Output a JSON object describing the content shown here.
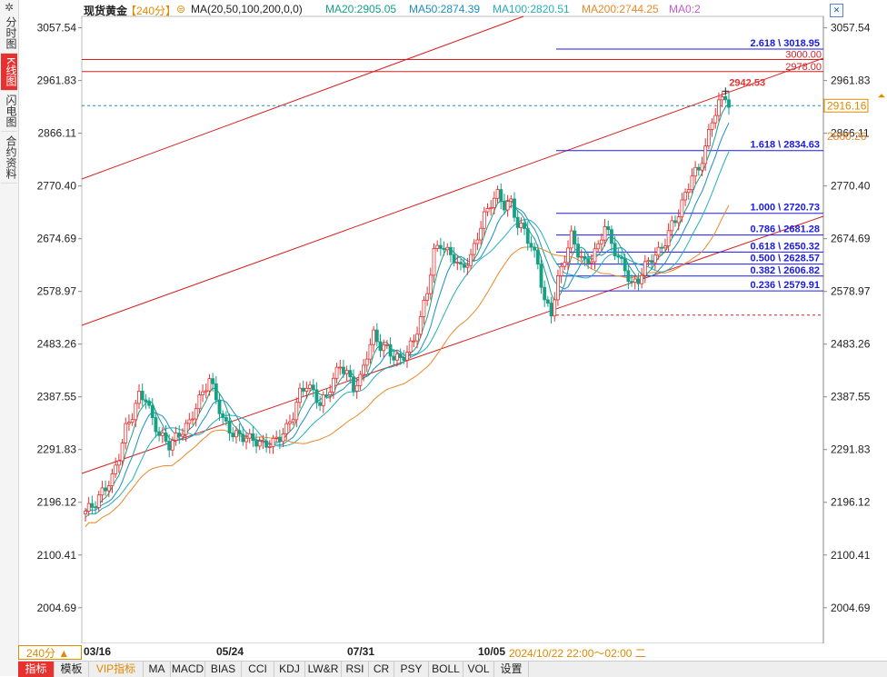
{
  "app": {
    "sidebar_tabs": [
      "分时图",
      "K线图",
      "闪电图",
      "合约资料"
    ],
    "active_tab": "K线图"
  },
  "header": {
    "symbol": "现货黄金",
    "period": "【240分】",
    "ma_label": "MA(20,50,100,200,0,0)",
    "ma20": "MA20:2905.05",
    "ma50": "MA50:2874.39",
    "ma100": "MA100:2820.51",
    "ma200": "MA200:2744.25",
    "ma0": "MA0:2",
    "tools": [
      "plus-box",
      "minus-box",
      "left-box",
      "right-box",
      "zoom-box",
      "close-box"
    ]
  },
  "colors": {
    "up": "#e8312f",
    "down": "#16a085",
    "ma20": "#16a085",
    "ma50": "#1b8fc2",
    "ma100": "#24b0b8",
    "ma200": "#e8892a",
    "fib": "#1a1ae6",
    "channel": "#d81e1e"
  },
  "chart_data": {
    "type": "candlestick",
    "y_axis_ticks": [
      "3057.54",
      "2961.83",
      "2866.11",
      "2770.40",
      "2674.69",
      "2578.97",
      "2483.26",
      "2387.55",
      "2291.83",
      "2196.12",
      "2100.41",
      "2004.69"
    ],
    "ylim": [
      1940,
      3075
    ],
    "x_ticks": [
      "03/16",
      "05/24",
      "07/31",
      "10/05"
    ],
    "current_price": "2916.16",
    "current_price_value": 2916.16,
    "ma_marker": "2860.26",
    "ma_marker_value": 2860.26,
    "high_label": "2942.53",
    "horizontal_levels": [
      {
        "label": "3000.00",
        "value": 3000.0
      },
      {
        "label": "2978.00",
        "value": 2978.0
      }
    ],
    "fib_levels": [
      {
        "label": "2.618 \\ 3018.95",
        "value": 3018.95
      },
      {
        "label": "1.618 \\ 2834.63",
        "value": 2834.63
      },
      {
        "label": "1.000 \\ 2720.73",
        "value": 2720.73
      },
      {
        "label": "0.786 \\ 2681.28",
        "value": 2681.28
      },
      {
        "label": "0.618 \\ 2650.32",
        "value": 2650.32
      },
      {
        "label": "0.500 \\ 2628.57",
        "value": 2628.57
      },
      {
        "label": "0.382 \\ 2606.82",
        "value": 2606.82
      },
      {
        "label": "0.236 \\ 2579.91",
        "value": 2579.91
      }
    ],
    "fib_low": 2536.0,
    "price_path": [
      [
        0,
        2180
      ],
      [
        3,
        2195
      ],
      [
        5,
        2215
      ],
      [
        8,
        2240
      ],
      [
        10,
        2280
      ],
      [
        12,
        2330
      ],
      [
        14,
        2355
      ],
      [
        16,
        2390
      ],
      [
        18,
        2385
      ],
      [
        20,
        2345
      ],
      [
        22,
        2320
      ],
      [
        25,
        2300
      ],
      [
        28,
        2320
      ],
      [
        31,
        2340
      ],
      [
        33,
        2370
      ],
      [
        35,
        2395
      ],
      [
        37,
        2420
      ],
      [
        39,
        2385
      ],
      [
        41,
        2345
      ],
      [
        44,
        2320
      ],
      [
        47,
        2315
      ],
      [
        50,
        2310
      ],
      [
        53,
        2300
      ],
      [
        56,
        2305
      ],
      [
        58,
        2315
      ],
      [
        60,
        2330
      ],
      [
        62,
        2355
      ],
      [
        64,
        2395
      ],
      [
        66,
        2410
      ],
      [
        68,
        2395
      ],
      [
        70,
        2375
      ],
      [
        72,
        2390
      ],
      [
        74,
        2420
      ],
      [
        76,
        2445
      ],
      [
        78,
        2430
      ],
      [
        80,
        2405
      ],
      [
        82,
        2420
      ],
      [
        84,
        2465
      ],
      [
        86,
        2500
      ],
      [
        88,
        2480
      ],
      [
        90,
        2475
      ],
      [
        92,
        2460
      ],
      [
        94,
        2455
      ],
      [
        96,
        2470
      ],
      [
        98,
        2490
      ],
      [
        100,
        2530
      ],
      [
        102,
        2580
      ],
      [
        104,
        2650
      ],
      [
        106,
        2665
      ],
      [
        108,
        2650
      ],
      [
        110,
        2640
      ],
      [
        112,
        2620
      ],
      [
        115,
        2640
      ],
      [
        117,
        2680
      ],
      [
        119,
        2715
      ],
      [
        121,
        2740
      ],
      [
        123,
        2755
      ],
      [
        125,
        2735
      ],
      [
        127,
        2740
      ],
      [
        129,
        2700
      ],
      [
        131,
        2690
      ],
      [
        133,
        2660
      ],
      [
        135,
        2630
      ],
      [
        137,
        2560
      ],
      [
        139,
        2540
      ],
      [
        141,
        2600
      ],
      [
        143,
        2640
      ],
      [
        145,
        2680
      ],
      [
        147,
        2650
      ],
      [
        149,
        2630
      ],
      [
        151,
        2640
      ],
      [
        153,
        2660
      ],
      [
        155,
        2700
      ],
      [
        157,
        2665
      ],
      [
        159,
        2640
      ],
      [
        161,
        2620
      ],
      [
        163,
        2590
      ],
      [
        165,
        2600
      ],
      [
        167,
        2625
      ],
      [
        169,
        2640
      ],
      [
        171,
        2650
      ],
      [
        173,
        2670
      ],
      [
        175,
        2700
      ],
      [
        177,
        2720
      ],
      [
        179,
        2755
      ],
      [
        181,
        2790
      ],
      [
        183,
        2800
      ],
      [
        185,
        2840
      ],
      [
        187,
        2890
      ],
      [
        189,
        2920
      ],
      [
        191,
        2935
      ],
      [
        192,
        2916
      ]
    ]
  },
  "bottom": {
    "period_select": "240分 ▲",
    "crosshair_time": "2024/10/22  22:00～02:00  二",
    "tabs": [
      "指标",
      "模板",
      "VIP指标",
      "MA",
      "MACD",
      "BIAS",
      "CCI",
      "KDJ",
      "LW&R",
      "RSI",
      "CR",
      "PSY",
      "BOLL",
      "VOL",
      "设置"
    ],
    "active_tab": "指标"
  }
}
